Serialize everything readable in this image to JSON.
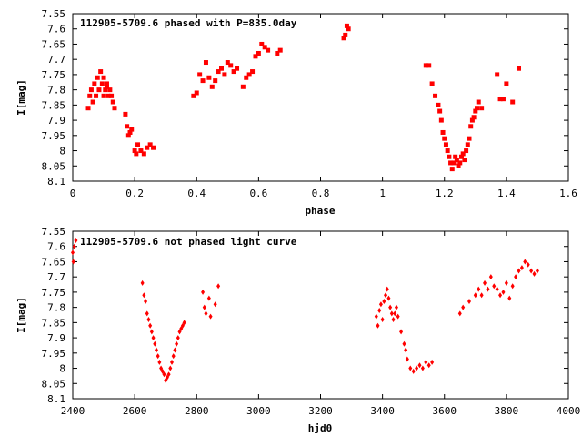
{
  "chart_data": [
    {
      "type": "scatter",
      "title": "112905-5709.6 phased with P=835.0day",
      "xlabel": "phase",
      "ylabel": "I[mag]",
      "xlim": [
        0,
        1.6
      ],
      "ylim": [
        7.55,
        8.1
      ],
      "y_inverted": true,
      "x_ticks": [
        "0",
        "0.2",
        "0.4",
        "0.6",
        "0.8",
        "1",
        "1.2",
        "1.4",
        "1.6"
      ],
      "y_ticks": [
        "7.55",
        "7.6",
        "7.65",
        "7.7",
        "7.75",
        "7.8",
        "7.85",
        "7.9",
        "7.95",
        "8",
        "8.05",
        "8.1"
      ],
      "grid": false,
      "legend": "none",
      "marker_color": "#ff0000",
      "series": [
        {
          "x": [
            0.05,
            0.055,
            0.06,
            0.065,
            0.07,
            0.075,
            0.08,
            0.085,
            0.09,
            0.095,
            0.1,
            0.105,
            0.11,
            0.115,
            0.12,
            0.125,
            0.13,
            0.135,
            0.1,
            0.11,
            0.17,
            0.175,
            0.18,
            0.185,
            0.19,
            0.2,
            0.205,
            0.21,
            0.22,
            0.23,
            0.24,
            0.25,
            0.26,
            0.39,
            0.4,
            0.41,
            0.42,
            0.43,
            0.44,
            0.45,
            0.46,
            0.47,
            0.48,
            0.49,
            0.5,
            0.51,
            0.52,
            0.53,
            0.55,
            0.56,
            0.57,
            0.58,
            0.59,
            0.6,
            0.61,
            0.62,
            0.63,
            0.66,
            0.67,
            0.875,
            0.88,
            0.885,
            0.89,
            1.14,
            1.15,
            1.16,
            1.17,
            1.18,
            1.185,
            1.19,
            1.195,
            1.2,
            1.205,
            1.21,
            1.215,
            1.22,
            1.225,
            1.23,
            1.235,
            1.24,
            1.245,
            1.25,
            1.255,
            1.26,
            1.265,
            1.27,
            1.275,
            1.28,
            1.285,
            1.29,
            1.295,
            1.3,
            1.305,
            1.31,
            1.32,
            1.37,
            1.38,
            1.39,
            1.4,
            1.42,
            1.44
          ],
          "y": [
            7.86,
            7.82,
            7.8,
            7.84,
            7.78,
            7.82,
            7.76,
            7.8,
            7.74,
            7.78,
            7.76,
            7.8,
            7.78,
            7.82,
            7.8,
            7.82,
            7.84,
            7.86,
            7.82,
            7.79,
            7.88,
            7.92,
            7.95,
            7.94,
            7.93,
            8.0,
            8.01,
            7.98,
            8.0,
            8.01,
            7.99,
            7.98,
            7.99,
            7.82,
            7.81,
            7.75,
            7.77,
            7.71,
            7.76,
            7.79,
            7.77,
            7.74,
            7.73,
            7.75,
            7.71,
            7.72,
            7.74,
            7.73,
            7.79,
            7.76,
            7.75,
            7.74,
            7.69,
            7.68,
            7.65,
            7.66,
            7.67,
            7.68,
            7.67,
            7.63,
            7.62,
            7.59,
            7.6,
            7.72,
            7.72,
            7.78,
            7.82,
            7.85,
            7.87,
            7.9,
            7.94,
            7.96,
            7.98,
            8.0,
            8.02,
            8.04,
            8.06,
            8.04,
            8.02,
            8.03,
            8.05,
            8.04,
            8.02,
            8.01,
            8.03,
            8.0,
            7.98,
            7.96,
            7.92,
            7.9,
            7.89,
            7.87,
            7.86,
            7.84,
            7.86,
            7.75,
            7.83,
            7.83,
            7.78,
            7.84,
            7.73
          ]
        }
      ]
    },
    {
      "type": "scatter",
      "title": "112905-5709.6 not phased light curve",
      "xlabel": "hjd0",
      "ylabel": "I[mag]",
      "xlim": [
        2400,
        4000
      ],
      "ylim": [
        7.55,
        8.1
      ],
      "y_inverted": true,
      "x_ticks": [
        "2400",
        "2600",
        "2800",
        "3000",
        "3200",
        "3400",
        "3600",
        "3800",
        "4000"
      ],
      "y_ticks": [
        "7.55",
        "7.6",
        "7.65",
        "7.7",
        "7.75",
        "7.8",
        "7.85",
        "7.9",
        "7.95",
        "8",
        "8.05",
        "8.1"
      ],
      "grid": false,
      "legend": "none",
      "marker_color": "#ff0000",
      "series": [
        {
          "x": [
            2400,
            2402,
            2405,
            2410,
            2625,
            2630,
            2635,
            2640,
            2645,
            2650,
            2655,
            2660,
            2665,
            2670,
            2675,
            2680,
            2685,
            2690,
            2695,
            2700,
            2705,
            2710,
            2715,
            2720,
            2725,
            2730,
            2735,
            2740,
            2745,
            2750,
            2755,
            2760,
            2820,
            2825,
            2830,
            2840,
            2845,
            2860,
            2870,
            3380,
            3385,
            3390,
            3395,
            3400,
            3405,
            3410,
            3415,
            3420,
            3425,
            3430,
            3435,
            3440,
            3445,
            3450,
            3460,
            3470,
            3475,
            3480,
            3490,
            3500,
            3510,
            3520,
            3530,
            3540,
            3550,
            3560,
            3650,
            3660,
            3680,
            3700,
            3710,
            3720,
            3730,
            3740,
            3750,
            3760,
            3770,
            3780,
            3790,
            3800,
            3810,
            3820,
            3830,
            3840,
            3850,
            3860,
            3870,
            3880,
            3890,
            3900
          ],
          "y": [
            7.62,
            7.65,
            7.6,
            7.58,
            7.72,
            7.76,
            7.78,
            7.82,
            7.84,
            7.86,
            7.88,
            7.9,
            7.92,
            7.94,
            7.96,
            7.98,
            8.0,
            8.01,
            8.02,
            8.04,
            8.03,
            8.02,
            8.0,
            7.98,
            7.96,
            7.94,
            7.92,
            7.9,
            7.88,
            7.87,
            7.86,
            7.85,
            7.75,
            7.8,
            7.82,
            7.77,
            7.83,
            7.79,
            7.73,
            7.83,
            7.86,
            7.81,
            7.79,
            7.84,
            7.78,
            7.76,
            7.74,
            7.77,
            7.8,
            7.82,
            7.84,
            7.82,
            7.8,
            7.83,
            7.88,
            7.92,
            7.94,
            7.97,
            8.0,
            8.01,
            8.0,
            7.99,
            8.0,
            7.98,
            7.99,
            7.98,
            7.82,
            7.8,
            7.78,
            7.76,
            7.74,
            7.76,
            7.72,
            7.74,
            7.7,
            7.73,
            7.74,
            7.76,
            7.75,
            7.72,
            7.77,
            7.73,
            7.7,
            7.68,
            7.67,
            7.65,
            7.66,
            7.68,
            7.69,
            7.68
          ]
        }
      ]
    }
  ]
}
